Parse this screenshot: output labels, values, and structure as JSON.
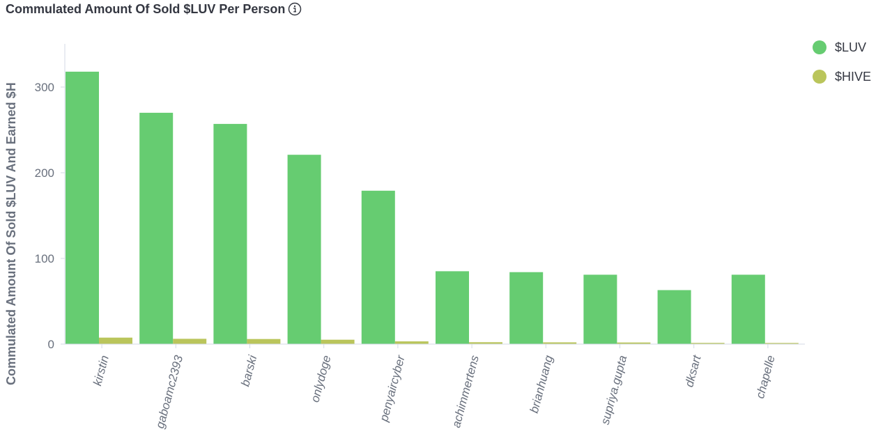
{
  "header": {
    "title": "Commulated Amount Of Sold $LUV Per Person"
  },
  "chart_data": {
    "type": "bar",
    "title": "Commulated Amount Of Sold $LUV Per Person",
    "xlabel": "",
    "ylabel": "Commulated Amount Of Sold $LUV And Earned $H",
    "categories": [
      "kirstin",
      "gaboamc2393",
      "barski",
      "onlydoge",
      "penyaircyber",
      "achimmertens",
      "brianhuang",
      "supriya.gupta",
      "dksart",
      "chapelle"
    ],
    "series": [
      {
        "name": "$LUV",
        "color": "#66cc71",
        "values": [
          318,
          270,
          257,
          221,
          179,
          85,
          84,
          81,
          63,
          81
        ]
      },
      {
        "name": "$HIVE",
        "color": "#bac55b",
        "values": [
          7.6,
          6.2,
          5.9,
          5.1,
          3.2,
          2.2,
          2.0,
          1.9,
          1.4,
          1.3
        ]
      }
    ],
    "yticks": [
      0,
      100,
      200,
      300
    ],
    "ylim": [
      0,
      350
    ],
    "grid": false,
    "legend_position": "top-right"
  }
}
